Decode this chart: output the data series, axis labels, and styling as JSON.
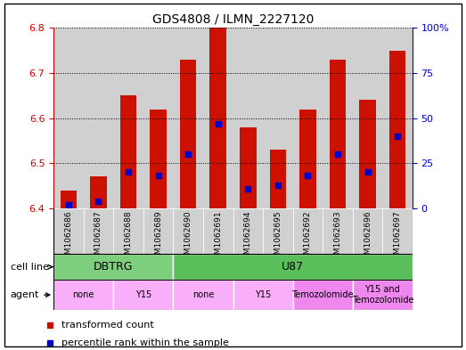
{
  "title": "GDS4808 / ILMN_2227120",
  "samples": [
    "GSM1062686",
    "GSM1062687",
    "GSM1062688",
    "GSM1062689",
    "GSM1062690",
    "GSM1062691",
    "GSM1062694",
    "GSM1062695",
    "GSM1062692",
    "GSM1062693",
    "GSM1062696",
    "GSM1062697"
  ],
  "transformed_counts": [
    6.44,
    6.47,
    6.65,
    6.62,
    6.73,
    6.8,
    6.58,
    6.53,
    6.62,
    6.73,
    6.64,
    6.75
  ],
  "percentile_ranks": [
    2,
    4,
    20,
    18,
    30,
    47,
    11,
    13,
    18,
    30,
    20,
    40
  ],
  "ylim_left": [
    6.4,
    6.8
  ],
  "ylim_right": [
    0,
    100
  ],
  "yticks_left": [
    6.4,
    6.5,
    6.6,
    6.7,
    6.8
  ],
  "yticks_right": [
    0,
    25,
    50,
    75,
    100
  ],
  "cell_line_groups": [
    {
      "label": "DBTRG",
      "start": 0,
      "end": 3,
      "color": "#7dce7d"
    },
    {
      "label": "U87",
      "start": 4,
      "end": 11,
      "color": "#5abf5a"
    }
  ],
  "agent_groups": [
    {
      "label": "none",
      "start": 0,
      "end": 1,
      "color": "#f9aef9"
    },
    {
      "label": "Y15",
      "start": 2,
      "end": 3,
      "color": "#f9aef9"
    },
    {
      "label": "none",
      "start": 4,
      "end": 5,
      "color": "#f9aef9"
    },
    {
      "label": "Y15",
      "start": 6,
      "end": 7,
      "color": "#f9aef9"
    },
    {
      "label": "Temozolomide",
      "start": 8,
      "end": 9,
      "color": "#ee88ee"
    },
    {
      "label": "Y15 and\nTemozolomide",
      "start": 10,
      "end": 11,
      "color": "#ee88ee"
    }
  ],
  "bar_color": "#cc1100",
  "percentile_color": "#0000cc",
  "bar_width": 0.55,
  "base_value": 6.4,
  "legend_red": "transformed count",
  "legend_blue": "percentile rank within the sample",
  "left_axis_color": "#cc0000",
  "right_axis_color": "#0000cc",
  "col_bg_color": "#d0d0d0",
  "plot_bg_color": "#ffffff"
}
